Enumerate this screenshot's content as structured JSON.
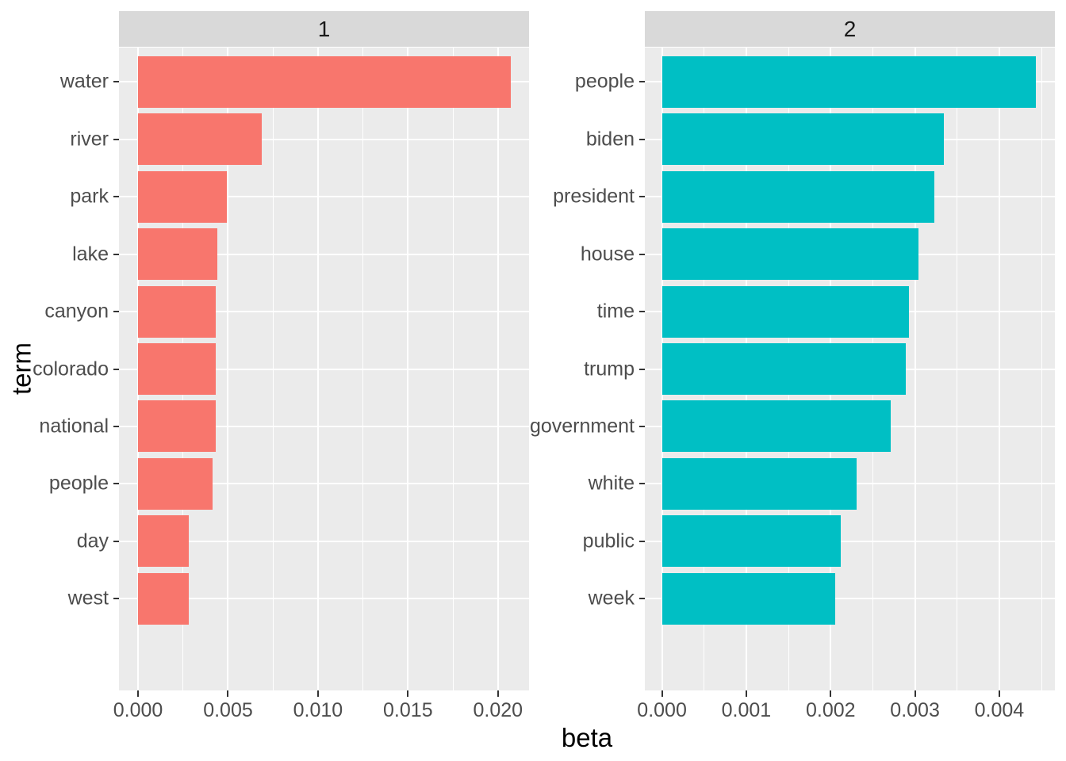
{
  "figure": {
    "xlabel": "beta",
    "ylabel": "term",
    "colors": {
      "panel_background": "#EBEBEB",
      "strip_background": "#D9D9D9",
      "gridline": "#FFFFFF",
      "tick_mark": "#333333",
      "axis_text": "#4D4D4D",
      "strip_text": "#1A1A1A",
      "axis_title_text": "#000000",
      "facet1_bar": "#F8766D",
      "facet2_bar": "#00BFC4"
    }
  },
  "chart_data": [
    {
      "type": "bar",
      "orientation": "horizontal",
      "facet_label": "1",
      "bar_color": "#F8766D",
      "categories": [
        "water",
        "river",
        "park",
        "lake",
        "canyon",
        "colorado",
        "national",
        "people",
        "day",
        "west"
      ],
      "values": [
        0.0207,
        0.00687,
        0.00493,
        0.0044,
        0.00432,
        0.00431,
        0.00432,
        0.00415,
        0.00282,
        0.00284
      ],
      "xlim": [
        -0.00106,
        0.02173
      ],
      "xticks": [
        0.0,
        0.005,
        0.01,
        0.015,
        0.02
      ],
      "xtick_labels": [
        "0.000",
        "0.005",
        "0.010",
        "0.015",
        "0.020"
      ],
      "grid": "on",
      "legend": "none"
    },
    {
      "type": "bar",
      "orientation": "horizontal",
      "facet_label": "2",
      "bar_color": "#00BFC4",
      "categories": [
        "people",
        "biden",
        "president",
        "house",
        "time",
        "trump",
        "government",
        "white",
        "public",
        "week"
      ],
      "values": [
        0.00443,
        0.00334,
        0.00323,
        0.00304,
        0.00293,
        0.00289,
        0.00271,
        0.00231,
        0.00212,
        0.00205
      ],
      "xlim": [
        -0.000203,
        0.004659
      ],
      "xticks": [
        0.0,
        0.001,
        0.002,
        0.003,
        0.004
      ],
      "xtick_labels": [
        "0.000",
        "0.001",
        "0.002",
        "0.003",
        "0.004"
      ],
      "grid": "on",
      "legend": "none"
    }
  ]
}
